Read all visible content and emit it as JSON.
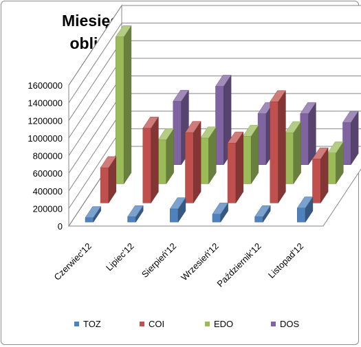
{
  "chart_data": {
    "type": "bar",
    "subtype": "3d-clustered-column",
    "title_lines": [
      "Miesięczny wolumen sprzedaży",
      "obligacji detalicznych (w szt.)"
    ],
    "categories": [
      "Czerwiec'12",
      "Lipiec'12",
      "Sierpień'12",
      "Wrzesień'12",
      "Październik'12",
      "Listopad'12"
    ],
    "series": [
      {
        "name": "TOZ",
        "color": "#4f81bd",
        "values": [
          50000,
          60000,
          150000,
          90000,
          60000,
          160000
        ]
      },
      {
        "name": "COI",
        "color": "#c0504d",
        "values": [
          400000,
          850000,
          800000,
          680000,
          1150000,
          500000
        ]
      },
      {
        "name": "EDO",
        "color": "#9bbb59",
        "values": [
          1670000,
          500000,
          520000,
          540000,
          580000,
          350000
        ]
      },
      {
        "name": "DOS",
        "color": "#8064a2",
        "values": [
          0,
          720000,
          890000,
          580000,
          580000,
          480000
        ]
      }
    ],
    "ylim": [
      0,
      1600000
    ],
    "yticks": [
      0,
      200000,
      400000,
      600000,
      800000,
      1000000,
      1200000,
      1400000,
      1600000
    ],
    "ytick_labels": [
      "0",
      "200000",
      "400000",
      "600000",
      "800000",
      "1000000",
      "1200000",
      "1400000",
      "1600000"
    ],
    "grid": true,
    "legend_position": "bottom"
  }
}
